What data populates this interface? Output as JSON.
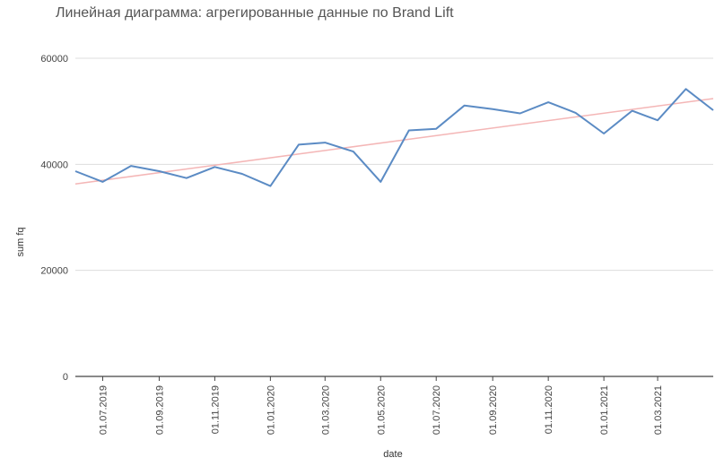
{
  "chart_data": {
    "type": "line",
    "title": "Линейная диаграмма: агрегированные данные по Brand Lift",
    "xlabel": "date",
    "ylabel": "sum fq",
    "ylim": [
      0,
      60000
    ],
    "y_ticks": [
      0,
      20000,
      40000,
      60000
    ],
    "x_ticks": [
      "01.07.2019",
      "01.09.2019",
      "01.11.2019",
      "01.01.2020",
      "01.03.2020",
      "01.05.2020",
      "01.07.2020",
      "01.09.2020",
      "01.11.2020",
      "01.01.2021",
      "01.03.2021"
    ],
    "grid": true,
    "series": [
      {
        "color": "#5b8bc4",
        "points": [
          {
            "x": "2019-06-01",
            "y": 38700
          },
          {
            "x": "2019-07-01",
            "y": 36700
          },
          {
            "x": "2019-08-01",
            "y": 39700
          },
          {
            "x": "2019-09-01",
            "y": 38700
          },
          {
            "x": "2019-10-01",
            "y": 37400
          },
          {
            "x": "2019-11-01",
            "y": 39500
          },
          {
            "x": "2019-12-01",
            "y": 38200
          },
          {
            "x": "2020-01-01",
            "y": 35900
          },
          {
            "x": "2020-02-01",
            "y": 43700
          },
          {
            "x": "2020-03-01",
            "y": 44100
          },
          {
            "x": "2020-04-01",
            "y": 42400
          },
          {
            "x": "2020-05-01",
            "y": 36700
          },
          {
            "x": "2020-06-01",
            "y": 46400
          },
          {
            "x": "2020-07-01",
            "y": 46700
          },
          {
            "x": "2020-08-01",
            "y": 51100
          },
          {
            "x": "2020-09-01",
            "y": 50400
          },
          {
            "x": "2020-10-01",
            "y": 49600
          },
          {
            "x": "2020-11-01",
            "y": 51700
          },
          {
            "x": "2020-12-01",
            "y": 49700
          },
          {
            "x": "2021-01-01",
            "y": 45800
          },
          {
            "x": "2021-02-01",
            "y": 50100
          },
          {
            "x": "2021-03-01",
            "y": 48300
          },
          {
            "x": "2021-04-01",
            "y": 54200
          },
          {
            "x": "2021-05-01",
            "y": 50200
          }
        ]
      },
      {
        "color": "#f4b6b6",
        "points": [
          {
            "x": "2019-06-01",
            "y": 36300
          },
          {
            "x": "2021-05-01",
            "y": 52400
          }
        ]
      }
    ]
  }
}
